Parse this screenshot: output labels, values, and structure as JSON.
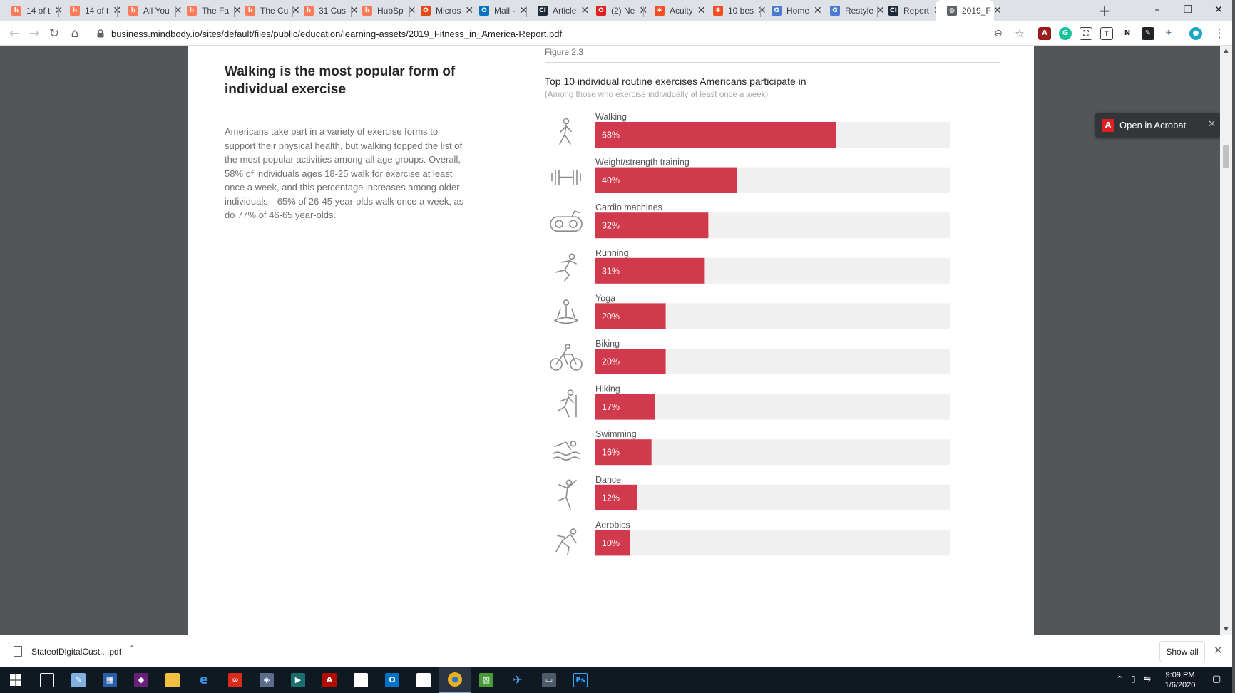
{
  "browser": {
    "tabs": [
      {
        "title": "14 of t",
        "icon": "hubspot-icon",
        "color": "#ff7a59"
      },
      {
        "title": "14 of t",
        "icon": "hubspot-icon",
        "color": "#ff7a59"
      },
      {
        "title": "All You",
        "icon": "hubspot-icon",
        "color": "#ff7a59"
      },
      {
        "title": "The Fa",
        "icon": "hubspot-icon",
        "color": "#ff7a59"
      },
      {
        "title": "The Cu",
        "icon": "hubspot-icon",
        "color": "#ff7a59"
      },
      {
        "title": "31 Cus",
        "icon": "hubspot-icon",
        "color": "#ff7a59"
      },
      {
        "title": "HubSp",
        "icon": "hubspot-icon",
        "color": "#ff7a59"
      },
      {
        "title": "Micros",
        "icon": "office-icon",
        "color": "#e64a19"
      },
      {
        "title": "Mail -",
        "icon": "outlook-icon",
        "color": "#0072c6"
      },
      {
        "title": "Article",
        "icon": "cision-icon",
        "color": "#1e2a3a"
      },
      {
        "title": "(2) Ne",
        "icon": "opera-icon",
        "color": "#e02020"
      },
      {
        "title": "Acuity",
        "icon": "sunburst-icon",
        "color": "#f25022"
      },
      {
        "title": "10 bes",
        "icon": "sunburst-icon",
        "color": "#f25022"
      },
      {
        "title": "Home",
        "icon": "g-circle-icon",
        "color": "#4a7bd0"
      },
      {
        "title": "Restyle",
        "icon": "g-circle-icon",
        "color": "#4a7bd0"
      },
      {
        "title": "Report",
        "icon": "cision-icon",
        "color": "#1e2a3a"
      },
      {
        "title": "2019_F",
        "icon": "globe-icon",
        "color": "#5f6368",
        "active": true
      }
    ],
    "url": "business.mindbody.io/sites/default/files/public/education/learning-assets/2019_Fitness_in_America-Report.pdf"
  },
  "pdf": {
    "open_in_acrobat": "Open in Acrobat",
    "figure_label": "Figure 2.3",
    "heading": "Walking is the most popular form of individual exercise",
    "body": "Americans take part in a variety of exercise forms to support their physical health, but walking topped the list of the most popular activities among all age groups. Overall, 58% of individuals ages 18-25 walk for exercise at least once a week, and this percentage increases among older individuals—65% of 26-45 year-olds walk once a week, as do 77% of 46-65 year-olds."
  },
  "chart_data": {
    "type": "bar",
    "orientation": "horizontal",
    "title": "Top 10 individual routine exercises Americans participate in",
    "subtitle": "(Among those who exercise individually at least once a week)",
    "categories": [
      "Walking",
      "Weight/strength training",
      "Cardio machines",
      "Running",
      "Yoga",
      "Biking",
      "Hiking",
      "Swimming",
      "Dance",
      "Aerobics"
    ],
    "values": [
      68,
      40,
      32,
      31,
      20,
      20,
      17,
      16,
      12,
      10
    ],
    "value_labels": [
      "68%",
      "40%",
      "32%",
      "31%",
      "20%",
      "20%",
      "17%",
      "16%",
      "12%",
      "10%"
    ],
    "icons": [
      "walking-icon",
      "dumbbell-icon",
      "exercise-bike-icon",
      "running-icon",
      "yoga-icon",
      "biking-icon",
      "hiking-icon",
      "swimming-icon",
      "dance-icon",
      "aerobics-icon"
    ],
    "xlim": [
      0,
      100
    ],
    "bar_color": "#d13a4c",
    "track_color": "#f0f0f0"
  },
  "downloads": {
    "file_name": "StateofDigitalCust....pdf",
    "show_all": "Show all"
  },
  "taskbar": {
    "time": "9:09 PM",
    "date": "1/6/2020"
  }
}
